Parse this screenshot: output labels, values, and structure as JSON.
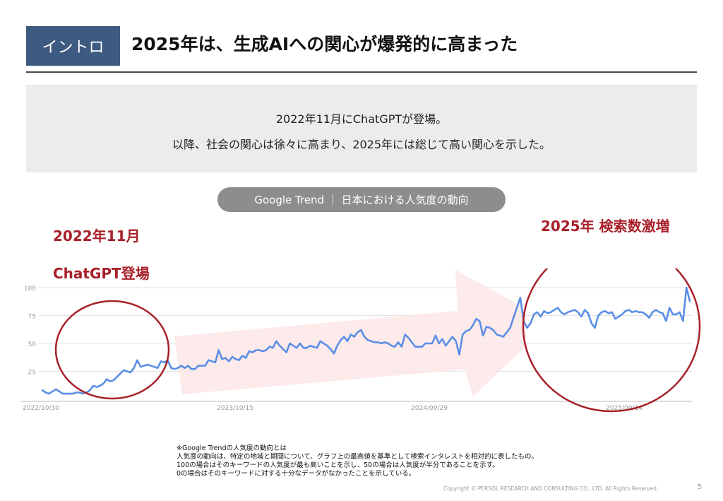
{
  "header": {
    "badge": "イントロ",
    "title": "2025年は、生成AIへの関心が爆発的に高まった"
  },
  "intro": {
    "line1": "2022年11月にChatGPTが登場。",
    "line2": "以降、社会の関心は徐々に高まり、2025年には総じて高い関心を示した。"
  },
  "chart_label": "Google Trend ｜ 日本における人気度の動向",
  "annotations": {
    "left_line1": "2022年11月",
    "left_line2": "ChatGPT登場",
    "right": "2025年 検索数激増"
  },
  "colors": {
    "badge": "#3d5a80",
    "accent_red": "#a8202a",
    "line": "#5b8fe6",
    "arrow": "#fde6e6"
  },
  "chart_data": {
    "type": "line",
    "title": "",
    "xlabel": "",
    "ylabel": "",
    "ylim": [
      0,
      100
    ],
    "yticks": [
      100,
      75,
      50,
      25
    ],
    "xtick_labels": [
      "2022/10/30",
      "2023/10/15",
      "2024/09/29",
      "2025/09/14"
    ],
    "x_start": "2022/10/30",
    "interval_days": 7,
    "grid": true,
    "series": [
      {
        "values": [
          8,
          6,
          5,
          7,
          9,
          7,
          5,
          5,
          5,
          5,
          6,
          6,
          5,
          6,
          8,
          12,
          11,
          12,
          14,
          18,
          16,
          17,
          20,
          23,
          26,
          25,
          24,
          28,
          35,
          29,
          30,
          31,
          30,
          29,
          28,
          34,
          33,
          35,
          28,
          27,
          28,
          30,
          28,
          30,
          27,
          27,
          30,
          30,
          30,
          35,
          34,
          33,
          44,
          36,
          37,
          34,
          38,
          36,
          35,
          39,
          37,
          43,
          42,
          44,
          44,
          43,
          44,
          47,
          46,
          52,
          48,
          45,
          42,
          50,
          48,
          46,
          50,
          46,
          46,
          48,
          47,
          46,
          52,
          50,
          48,
          45,
          41,
          48,
          53,
          56,
          52,
          58,
          56,
          60,
          62,
          56,
          53,
          52,
          51,
          51,
          50,
          51,
          50,
          48,
          47,
          51,
          47,
          58,
          55,
          51,
          47,
          47,
          47,
          50,
          50,
          50,
          57,
          50,
          54,
          48,
          52,
          56,
          52,
          40,
          58,
          61,
          62,
          66,
          72,
          70,
          57,
          65,
          64,
          62,
          58,
          57,
          56,
          60,
          64,
          73,
          82,
          91,
          70,
          64,
          68,
          76,
          78,
          74,
          79,
          77,
          78,
          80,
          82,
          78,
          76,
          78,
          79,
          80,
          78,
          74,
          80,
          77,
          68,
          64,
          75,
          78,
          79,
          77,
          78,
          72,
          74,
          76,
          79,
          80,
          78,
          79,
          78,
          78,
          76,
          73,
          78,
          80,
          78,
          77,
          70,
          82,
          76,
          76,
          78,
          70,
          100,
          88
        ]
      }
    ]
  },
  "footnote": {
    "title": "※Google Trendの人気度の動向とは",
    "line1": "人気度の動向は、特定の地域と期間について、グラフ上の最高値を基準として検索インタレストを相対的に表したもの。",
    "line2": "100の場合はそのキーワードの人気度が最も高いことを示し、50の場合は人気度が半分であることを示す。",
    "line3": "0の場合はそのキーワードに対する十分なデータがなかったことを示している。"
  },
  "copyright": "Copyright © PERSOL RESEARCH AND CONSULTING CO., LTD. All Rights Reserved.",
  "page_number": "5"
}
